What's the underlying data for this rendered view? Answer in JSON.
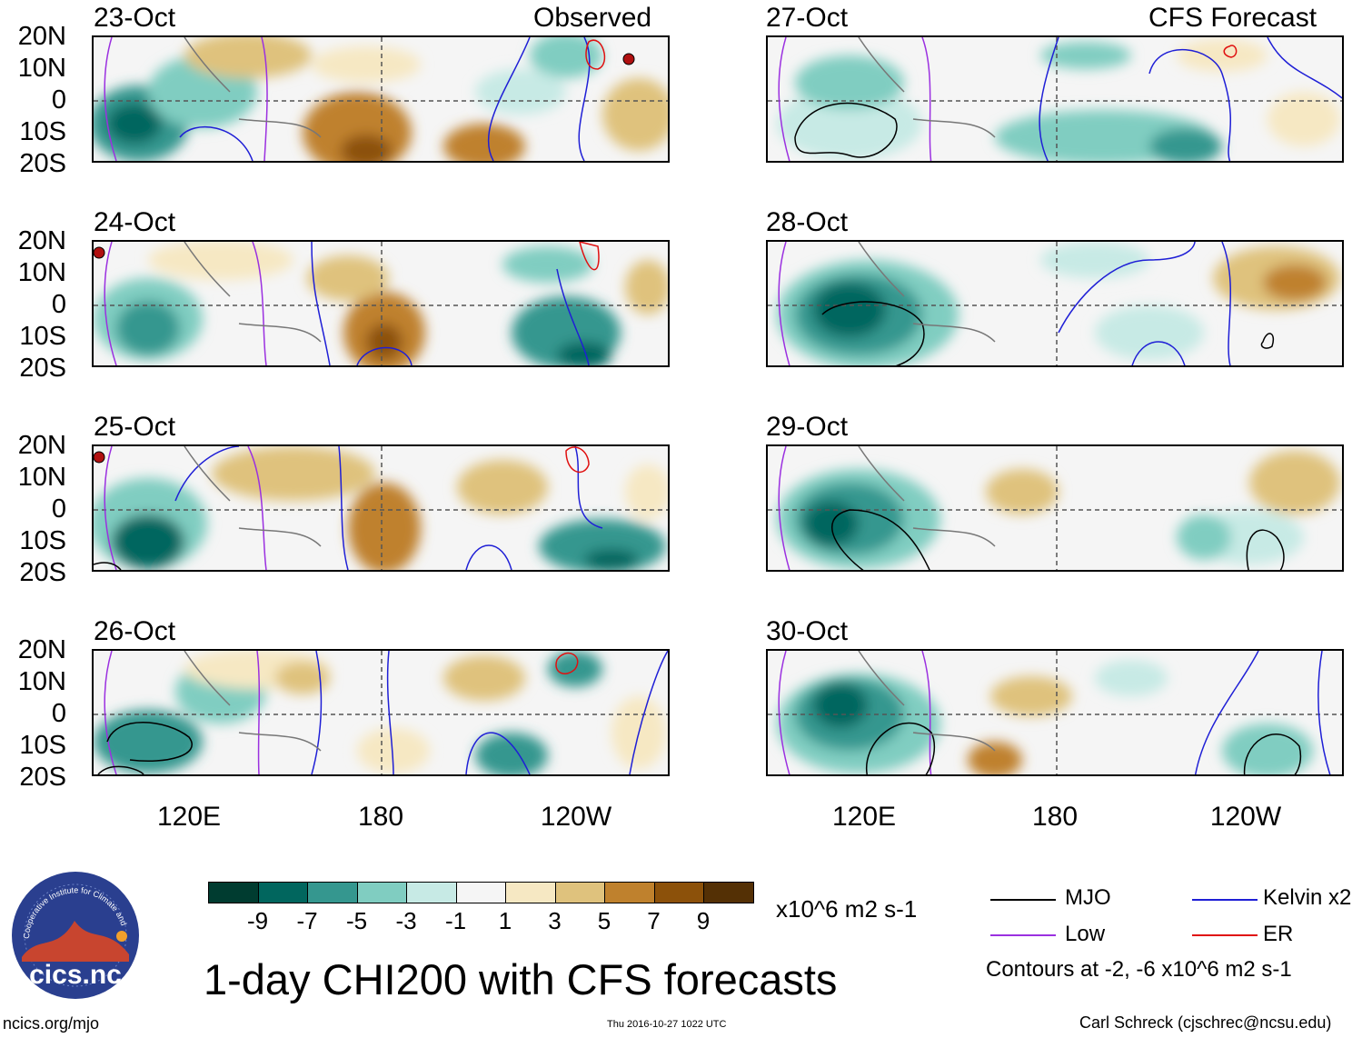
{
  "headings": {
    "observed": "Observed",
    "forecast": "CFS Forecast"
  },
  "dates": {
    "left": [
      "23-Oct",
      "24-Oct",
      "25-Oct",
      "26-Oct"
    ],
    "right": [
      "27-Oct",
      "28-Oct",
      "29-Oct",
      "30-Oct"
    ]
  },
  "lat_labels": [
    "20N",
    "10N",
    "0",
    "10S",
    "20S"
  ],
  "lon_labels": [
    "120E",
    "180",
    "120W"
  ],
  "colorbar": {
    "colors": [
      "#003c30",
      "#01665e",
      "#35978f",
      "#80cdc1",
      "#c7eae5",
      "#f5f5f5",
      "#f6e8c3",
      "#dfc27d",
      "#bf812d",
      "#8c510a",
      "#543005"
    ],
    "labels": [
      "-9",
      "-7",
      "-5",
      "-3",
      "-1",
      "1",
      "3",
      "5",
      "7",
      "9"
    ],
    "units": "x10^6 m2 s-1"
  },
  "legend": {
    "items": [
      {
        "label": "MJO",
        "color": "#000000"
      },
      {
        "label": "Kelvin x2",
        "color": "#1f1fd6"
      },
      {
        "label": "Low",
        "color": "#9b30e0"
      },
      {
        "label": "ER",
        "color": "#e01010"
      }
    ],
    "contours": "Contours at -2, -6 x10^6 m2 s-1"
  },
  "logo": {
    "text": "cics.nc",
    "ring_text": "Cooperative Institute for Climate and Satellites"
  },
  "title": "1-day CHI200 with CFS forecasts",
  "footer": {
    "url": "ncics.org/mjo",
    "timestamp": "Thu 2016-10-27 1022 UTC",
    "author": "Carl Schreck (cjschrec@ncsu.edu)"
  }
}
